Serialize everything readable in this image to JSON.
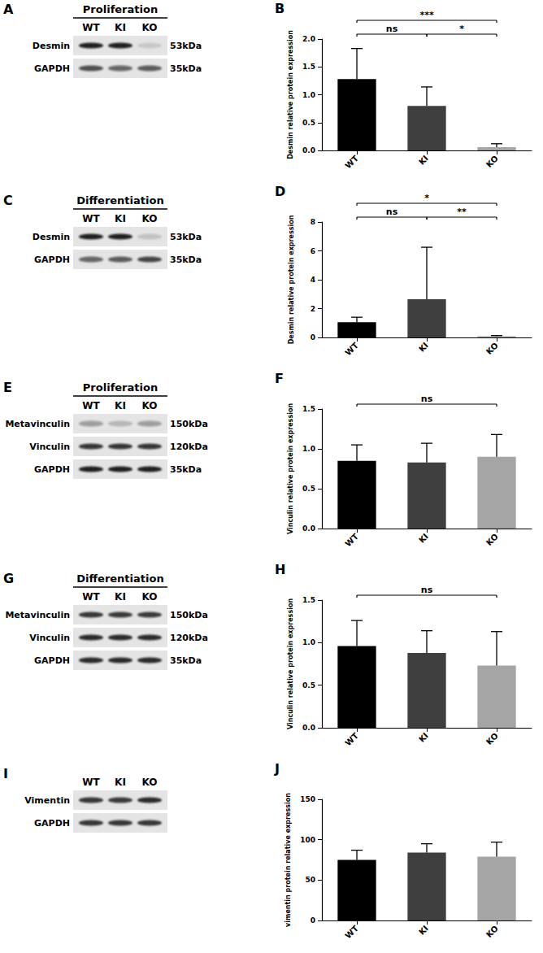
{
  "chart_data": [
    {
      "panel": "B",
      "type": "bar",
      "y_label": "Desmin relative protein expression",
      "categories": [
        "WT",
        "KI",
        "KO"
      ],
      "values": [
        1.28,
        0.8,
        0.06
      ],
      "errors": [
        0.55,
        0.34,
        0.06
      ],
      "colors": [
        "#000000",
        "#3f3f3f",
        "#a5a5a5"
      ],
      "ylim": [
        0,
        2
      ],
      "yticks": [
        {
          "value": 0,
          "label": "0.0"
        },
        0.5,
        {
          "value": 1,
          "label": "1.0"
        },
        1.5,
        {
          "value": 2,
          "label": "2.0"
        }
      ],
      "annotations": [
        {
          "text": "ns",
          "from": "WT",
          "to": "KI"
        },
        {
          "text": "***",
          "from": "WT",
          "to": "KO"
        },
        {
          "text": "*",
          "from": "KI",
          "to": "KO"
        }
      ]
    },
    {
      "panel": "D",
      "type": "bar",
      "y_label": "Desmin relative protein expression",
      "categories": [
        "WT",
        "KI",
        "KO"
      ],
      "values": [
        1.05,
        2.65,
        0.08
      ],
      "errors": [
        0.35,
        3.6,
        0.05
      ],
      "colors": [
        "#000000",
        "#3f3f3f",
        "#a5a5a5"
      ],
      "ylim": [
        0,
        8
      ],
      "yticks": [
        0,
        2,
        4,
        6,
        8
      ],
      "annotations": [
        {
          "text": "ns",
          "from": "WT",
          "to": "KI"
        },
        {
          "text": "*",
          "from": "WT",
          "to": "KO"
        },
        {
          "text": "**",
          "from": "KI",
          "to": "KO"
        }
      ]
    },
    {
      "panel": "F",
      "type": "bar",
      "y_label": "Vinculin relative protein expression",
      "categories": [
        "WT",
        "KI",
        "KO"
      ],
      "values": [
        0.85,
        0.83,
        0.9
      ],
      "errors": [
        0.2,
        0.24,
        0.28
      ],
      "colors": [
        "#000000",
        "#3f3f3f",
        "#a5a5a5"
      ],
      "ylim": [
        0,
        1.5
      ],
      "yticks": [
        {
          "value": 0,
          "label": "0.0"
        },
        0.5,
        {
          "value": 1,
          "label": "1.0"
        },
        1.5
      ],
      "annotations": [
        {
          "text": "ns",
          "from": "WT",
          "to": "KO"
        }
      ]
    },
    {
      "panel": "H",
      "type": "bar",
      "y_label": "Vinculin relative protein expression",
      "categories": [
        "WT",
        "KI",
        "KO"
      ],
      "values": [
        0.96,
        0.88,
        0.73
      ],
      "errors": [
        0.3,
        0.26,
        0.4
      ],
      "colors": [
        "#000000",
        "#3f3f3f",
        "#a5a5a5"
      ],
      "ylim": [
        0,
        1.5
      ],
      "yticks": [
        {
          "value": 0,
          "label": "0.0"
        },
        0.5,
        {
          "value": 1,
          "label": "1.0"
        },
        1.5
      ],
      "annotations": [
        {
          "text": "ns",
          "from": "WT",
          "to": "KO"
        }
      ]
    },
    {
      "panel": "J",
      "type": "bar",
      "y_label": "vimentin protein relative expression",
      "categories": [
        "WT",
        "KI",
        "KO"
      ],
      "values": [
        75,
        84,
        79
      ],
      "errors": [
        12,
        11,
        18
      ],
      "colors": [
        "#000000",
        "#3f3f3f",
        "#a5a5a5"
      ],
      "ylim": [
        0,
        150
      ],
      "yticks": [
        0,
        50,
        100,
        150
      ],
      "annotations": []
    }
  ],
  "blots": [
    {
      "panel": "A",
      "title": "Proliferation",
      "lanes": [
        "WT",
        "KI",
        "KO"
      ],
      "rows": [
        {
          "label": "Desmin",
          "size": "53kDa"
        },
        {
          "label": "GAPDH",
          "size": "35kDa"
        }
      ]
    },
    {
      "panel": "C",
      "title": "Differentiation",
      "lanes": [
        "WT",
        "KI",
        "KO"
      ],
      "rows": [
        {
          "label": "Desmin",
          "size": "53kDa"
        },
        {
          "label": "GAPDH",
          "size": "35kDa"
        }
      ]
    },
    {
      "panel": "E",
      "title": "Proliferation",
      "lanes": [
        "WT",
        "KI",
        "KO"
      ],
      "rows": [
        {
          "label": "Metavinculin",
          "size": "150kDa"
        },
        {
          "label": "Vinculin",
          "size": "120kDa"
        },
        {
          "label": "GAPDH",
          "size": "35kDa"
        }
      ]
    },
    {
      "panel": "G",
      "title": "Differentiation",
      "lanes": [
        "WT",
        "KI",
        "KO"
      ],
      "rows": [
        {
          "label": "Metavinculin",
          "size": "150kDa"
        },
        {
          "label": "Vinculin",
          "size": "120kDa"
        },
        {
          "label": "GAPDH",
          "size": "35kDa"
        }
      ]
    },
    {
      "panel": "I",
      "lanes": [
        "WT",
        "KI",
        "KO"
      ],
      "rows": [
        {
          "label": "Vimentin"
        },
        {
          "label": "GAPDH"
        }
      ]
    }
  ]
}
